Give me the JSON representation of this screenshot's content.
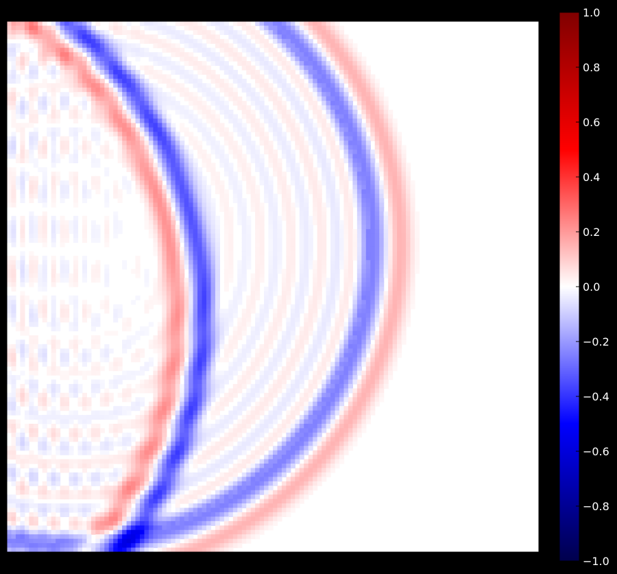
{
  "chart_data": {
    "type": "heatmap",
    "title": "",
    "xlabel": "",
    "ylabel": "",
    "colormap": "seismic",
    "colormap_stops": [
      "#00004c",
      "#0000ff",
      "#ffffff",
      "#ff0000",
      "#800000"
    ],
    "colorbar": {
      "range": [
        -1.0,
        1.0
      ],
      "ticks": [
        1.0,
        0.8,
        0.6,
        0.4,
        0.2,
        0.0,
        -0.2,
        -0.4,
        -0.6,
        -0.8,
        -1.0
      ],
      "tick_labels": [
        "1.0",
        "0.8",
        "0.6",
        "0.4",
        "0.2",
        "0.0",
        "−0.2",
        "−0.4",
        "−0.6",
        "−0.8",
        "−1.0"
      ],
      "placement": "right"
    },
    "axes_ticks_visible": false,
    "background": "#000000",
    "field": {
      "description_free": true,
      "wavefronts": [
        {
          "kind": "arc",
          "sign": 1,
          "amplitude": 0.15,
          "center": [
            0.12,
            0.42
          ],
          "radius": 0.62
        },
        {
          "kind": "arc",
          "sign": -1,
          "amplitude": 0.25,
          "center": [
            0.12,
            0.42
          ],
          "radius": 0.57
        },
        {
          "kind": "arc",
          "sign": -1,
          "amplitude": 0.35,
          "center": [
            -0.35,
            0.55
          ],
          "radius": 0.72
        },
        {
          "kind": "arc",
          "sign": 1,
          "amplitude": 0.2,
          "center": [
            -0.35,
            0.55
          ],
          "radius": 0.67
        }
      ]
    }
  }
}
